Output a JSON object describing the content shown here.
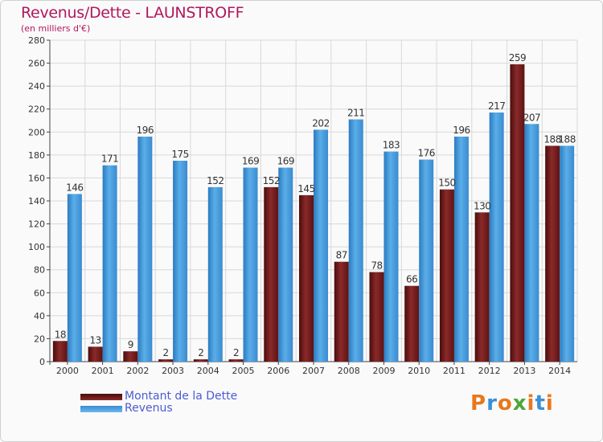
{
  "colors": {
    "debt": "#7a1e1e",
    "debt_dark": "#4a0c0c",
    "revenus": "#4a9fe0",
    "revenus_dark": "#2b7bc0",
    "grid": "#d8d8d8",
    "title": "#b0185d",
    "legend_text": "#4a5bd4"
  },
  "logo": {
    "text": "Proxiti"
  },
  "chart_data": {
    "type": "bar",
    "title": "Revenus/Dette - LAUNSTROFF",
    "subtitle": "(en milliers d'€)",
    "xlabel": "",
    "ylabel": "",
    "ylim": [
      0,
      280
    ],
    "yticks": [
      0,
      20,
      40,
      60,
      80,
      100,
      120,
      140,
      160,
      180,
      200,
      220,
      240,
      260,
      280
    ],
    "grid": true,
    "legend_position": "bottom-left",
    "categories": [
      "2000",
      "2001",
      "2002",
      "2003",
      "2004",
      "2005",
      "2006",
      "2007",
      "2008",
      "2009",
      "2010",
      "2011",
      "2012",
      "2013",
      "2014"
    ],
    "series": [
      {
        "name": "Montant de la Dette",
        "values": [
          18,
          13,
          9,
          2,
          2,
          2,
          152,
          145,
          87,
          78,
          66,
          150,
          130,
          259,
          188
        ],
        "labels": [
          "18",
          "13",
          "9",
          "2",
          "2",
          "2",
          "152",
          "145",
          "87",
          "78",
          "66",
          "150",
          "130",
          "259",
          "188"
        ]
      },
      {
        "name": "Revenus",
        "values": [
          146,
          171,
          196,
          175,
          152,
          169,
          169,
          202,
          211,
          183,
          176,
          196,
          217,
          207,
          188
        ],
        "labels": [
          "146",
          "171",
          "196",
          "175",
          "152",
          "169",
          "169",
          "202",
          "211",
          "183",
          "176",
          "196",
          "217",
          "207",
          "188"
        ]
      }
    ]
  }
}
